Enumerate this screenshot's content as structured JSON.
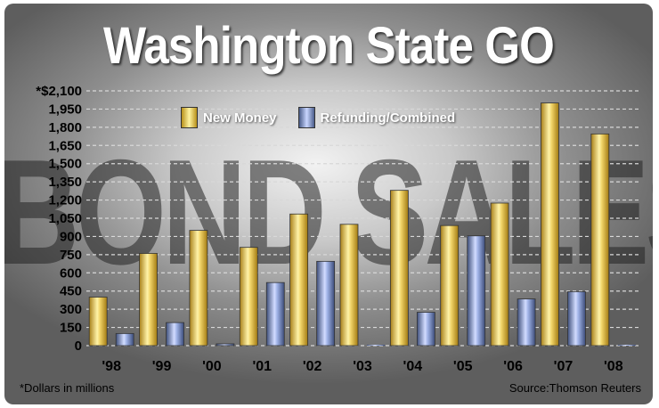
{
  "watermark_text": "BOND SALES",
  "footnote": "*Dollars in millions",
  "source": "Source:Thomson Reuters",
  "colors": {
    "new_money": "#e8c84a",
    "refunding": "#8aa0d8",
    "grid": "#d8d8d8"
  },
  "chart_data": {
    "type": "bar",
    "title": "Washington State GO",
    "xlabel": "",
    "ylabel": "",
    "ylim": [
      0,
      2100
    ],
    "yticks": [
      0,
      150,
      300,
      450,
      600,
      750,
      900,
      1050,
      1200,
      1350,
      1500,
      1650,
      1800,
      1950,
      2100
    ],
    "ytick_labels": [
      "0",
      "150",
      "300",
      "450",
      "600",
      "750",
      "900",
      "1,050",
      "1,200",
      "1,350",
      "1,500",
      "1,650",
      "1,800",
      "1,950",
      "*$2,100"
    ],
    "categories": [
      "'98",
      "'99",
      "'00",
      "'01",
      "'02",
      "'03",
      "'04",
      "'05",
      "'06",
      "'07",
      "'08"
    ],
    "series": [
      {
        "name": "New Money",
        "values": [
          400,
          760,
          950,
          810,
          1085,
          1000,
          1280,
          990,
          1175,
          2000,
          1745
        ]
      },
      {
        "name": "Refunding/Combined",
        "values": [
          100,
          190,
          15,
          520,
          695,
          0,
          275,
          905,
          385,
          445,
          0
        ]
      }
    ],
    "grid": true,
    "legend_position": "top-left"
  }
}
